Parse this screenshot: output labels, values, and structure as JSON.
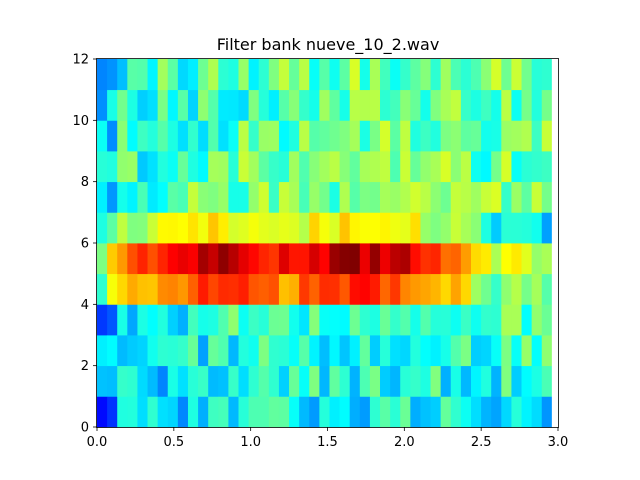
{
  "chart_data": {
    "type": "heatmap",
    "title": "Filter bank nueve_10_2.wav",
    "xlabel": "",
    "ylabel": "",
    "xlim": [
      0.0,
      3.0
    ],
    "ylim": [
      0,
      12
    ],
    "x_ticks": [
      "0.0",
      "0.5",
      "1.0",
      "1.5",
      "2.0",
      "2.5",
      "3.0"
    ],
    "y_ticks": [
      "0",
      "2",
      "4",
      "6",
      "8",
      "10",
      "12"
    ],
    "x_tick_values": [
      0.0,
      0.5,
      1.0,
      1.5,
      2.0,
      2.5,
      3.0
    ],
    "y_tick_values": [
      0,
      2,
      4,
      6,
      8,
      10,
      12
    ],
    "colormap": "jet",
    "grid": false,
    "frames_x_extent": 2.96,
    "n_frames": 45,
    "n_bands": 12,
    "band_profile": [
      0.3,
      0.32,
      0.34,
      0.36,
      0.8,
      0.92,
      0.62,
      0.42,
      0.4,
      0.4,
      0.38,
      0.4
    ],
    "time_envelope": [
      {
        "t": 0.0,
        "gain": 0.5
      },
      {
        "t": 0.1,
        "gain": 0.8
      },
      {
        "t": 0.45,
        "gain": 0.95
      },
      {
        "t": 0.8,
        "gain": 1.05
      },
      {
        "t": 1.2,
        "gain": 0.92
      },
      {
        "t": 1.6,
        "gain": 1.05
      },
      {
        "t": 2.0,
        "gain": 1.0
      },
      {
        "t": 2.4,
        "gain": 0.8
      },
      {
        "t": 2.6,
        "gain": 0.6
      },
      {
        "t": 2.75,
        "gain": 0.72
      },
      {
        "t": 2.96,
        "gain": 0.5
      }
    ]
  }
}
